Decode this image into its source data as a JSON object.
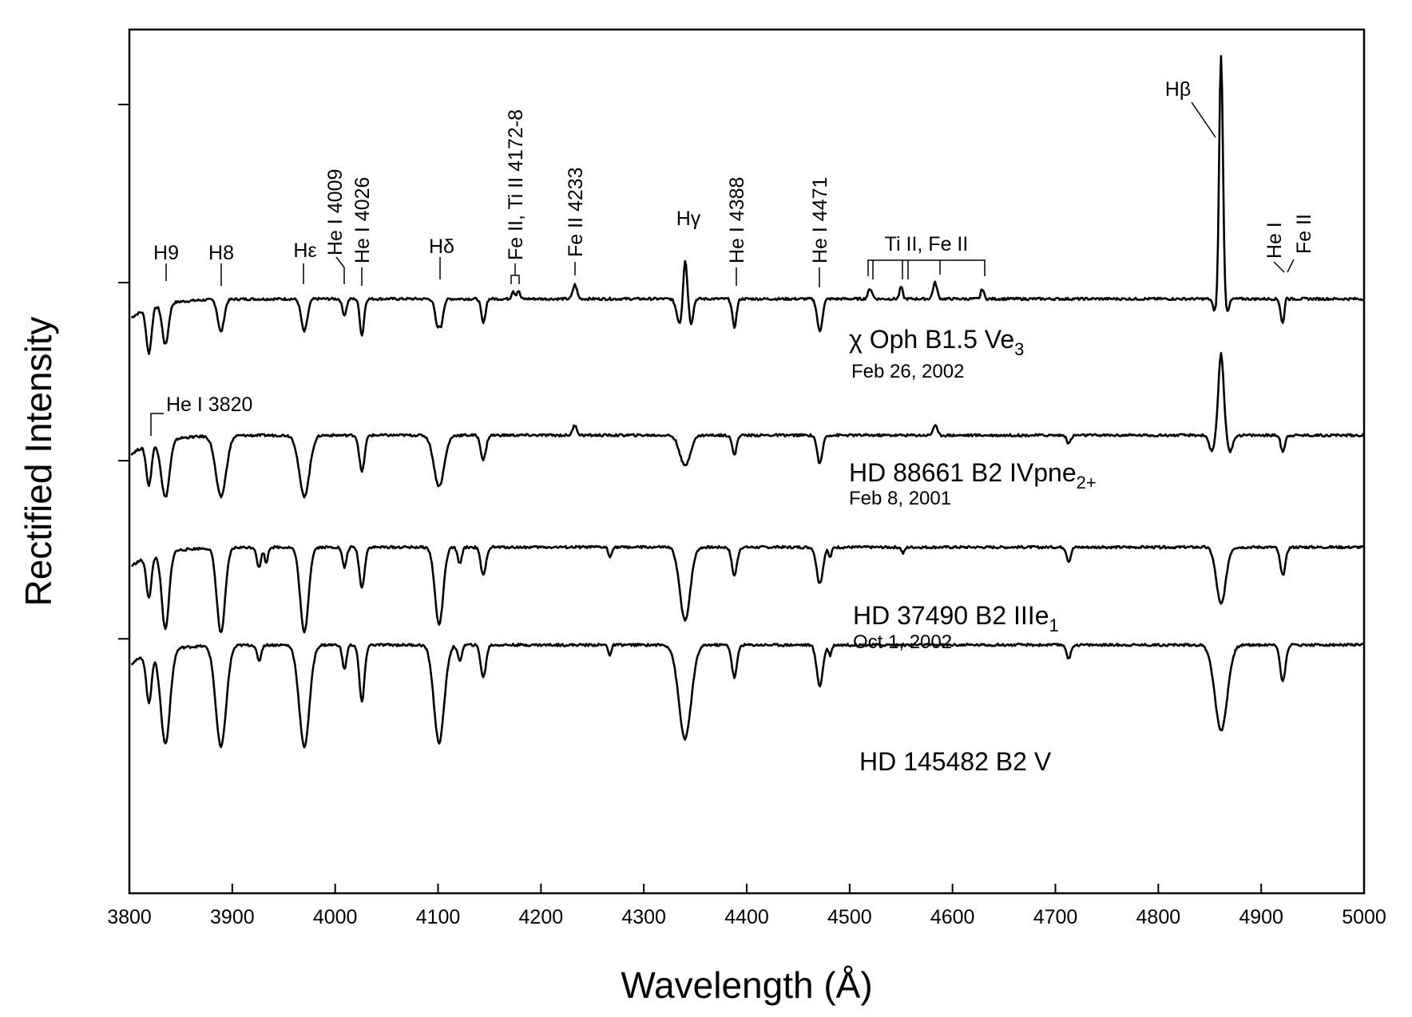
{
  "chart_data": {
    "type": "line",
    "xlabel": "Wavelength (Å)",
    "ylabel": "Rectified Intensity",
    "xlim": [
      3800,
      5000
    ],
    "x_ticks": [
      "3800",
      "3900",
      "4000",
      "4100",
      "4200",
      "4300",
      "4400",
      "4500",
      "4600",
      "4700",
      "4800",
      "4900",
      "5000"
    ],
    "y_ticks_count": 4,
    "grid": false,
    "legend": "none",
    "series": [
      {
        "name": "χ Oph  B1.5 Ve",
        "name_sub": "3",
        "date": "Feb 26, 2002",
        "offset": 3.0,
        "features": [
          {
            "x": 3819,
            "depth": -0.22,
            "width": 2.5
          },
          {
            "x": 3835,
            "depth": -0.2,
            "width": 3
          },
          {
            "x": 3889,
            "depth": -0.16,
            "width": 3
          },
          {
            "x": 3970,
            "depth": -0.16,
            "width": 3
          },
          {
            "x": 4009,
            "depth": -0.08,
            "width": 2
          },
          {
            "x": 4026,
            "depth": -0.18,
            "width": 2
          },
          {
            "x": 4101,
            "depth": -0.18,
            "width": 3
          },
          {
            "x": 4101,
            "depth": 0.05,
            "width": 1
          },
          {
            "x": 4144,
            "depth": -0.12,
            "width": 2
          },
          {
            "x": 4173,
            "depth": 0.04,
            "width": 1.5
          },
          {
            "x": 4178,
            "depth": 0.04,
            "width": 1.5
          },
          {
            "x": 4233,
            "depth": 0.07,
            "width": 2
          },
          {
            "x": 4335,
            "depth": -0.12,
            "width": 3
          },
          {
            "x": 4340,
            "depth": 0.22,
            "width": 1.8
          },
          {
            "x": 4346,
            "depth": -0.12,
            "width": 2
          },
          {
            "x": 4388,
            "depth": -0.14,
            "width": 2
          },
          {
            "x": 4471,
            "depth": -0.16,
            "width": 2.5
          },
          {
            "x": 4520,
            "depth": 0.05,
            "width": 2
          },
          {
            "x": 4550,
            "depth": 0.06,
            "width": 1.5
          },
          {
            "x": 4583,
            "depth": 0.08,
            "width": 2
          },
          {
            "x": 4629,
            "depth": 0.05,
            "width": 1.5
          },
          {
            "x": 4861,
            "depth": 1.2,
            "width": 1.8
          },
          {
            "x": 4855,
            "depth": -0.06,
            "width": 2
          },
          {
            "x": 4867,
            "depth": -0.06,
            "width": 2
          },
          {
            "x": 4921,
            "depth": -0.12,
            "width": 2
          },
          {
            "x": 4924,
            "depth": 0.04,
            "width": 1
          }
        ]
      },
      {
        "name": "HD 88661  B2 IVpne",
        "name_sub": "2+",
        "date": "Feb 8, 2001",
        "offset": 2.0,
        "features": [
          {
            "x": 3819,
            "depth": -0.2,
            "width": 2.5
          },
          {
            "x": 3835,
            "depth": -0.28,
            "width": 4
          },
          {
            "x": 3889,
            "depth": -0.3,
            "width": 5
          },
          {
            "x": 3970,
            "depth": -0.3,
            "width": 5
          },
          {
            "x": 4026,
            "depth": -0.18,
            "width": 2.5
          },
          {
            "x": 4101,
            "depth": -0.25,
            "width": 5
          },
          {
            "x": 4144,
            "depth": -0.12,
            "width": 2.5
          },
          {
            "x": 4233,
            "depth": 0.05,
            "width": 2
          },
          {
            "x": 4340,
            "depth": -0.15,
            "width": 5
          },
          {
            "x": 4388,
            "depth": -0.1,
            "width": 2
          },
          {
            "x": 4471,
            "depth": -0.14,
            "width": 2.5
          },
          {
            "x": 4583,
            "depth": 0.05,
            "width": 2
          },
          {
            "x": 4713,
            "depth": -0.04,
            "width": 2
          },
          {
            "x": 4861,
            "depth": 0.4,
            "width": 2.5
          },
          {
            "x": 4852,
            "depth": -0.08,
            "width": 2.5
          },
          {
            "x": 4870,
            "depth": -0.08,
            "width": 2.5
          },
          {
            "x": 4921,
            "depth": -0.08,
            "width": 2
          }
        ]
      },
      {
        "name": "HD 37490  B2 IIIe",
        "name_sub": "1",
        "date": "Oct 1, 2002",
        "offset": 1.3,
        "features": [
          {
            "x": 3819,
            "depth": -0.2,
            "width": 2.5
          },
          {
            "x": 3835,
            "depth": -0.38,
            "width": 3.5
          },
          {
            "x": 3889,
            "depth": -0.42,
            "width": 4
          },
          {
            "x": 3926,
            "depth": -0.1,
            "width": 2
          },
          {
            "x": 3933,
            "depth": -0.08,
            "width": 1.5
          },
          {
            "x": 3970,
            "depth": -0.42,
            "width": 4
          },
          {
            "x": 4009,
            "depth": -0.1,
            "width": 2
          },
          {
            "x": 4026,
            "depth": -0.2,
            "width": 2.5
          },
          {
            "x": 4101,
            "depth": -0.38,
            "width": 4
          },
          {
            "x": 4121,
            "depth": -0.08,
            "width": 2
          },
          {
            "x": 4144,
            "depth": -0.14,
            "width": 2.5
          },
          {
            "x": 4267,
            "depth": -0.05,
            "width": 1.5
          },
          {
            "x": 4340,
            "depth": -0.36,
            "width": 5
          },
          {
            "x": 4388,
            "depth": -0.14,
            "width": 2.5
          },
          {
            "x": 4471,
            "depth": -0.18,
            "width": 3
          },
          {
            "x": 4481,
            "depth": -0.05,
            "width": 1.5
          },
          {
            "x": 4552,
            "depth": -0.03,
            "width": 1.5
          },
          {
            "x": 4713,
            "depth": -0.07,
            "width": 2
          },
          {
            "x": 4861,
            "depth": -0.28,
            "width": 4.5
          },
          {
            "x": 4921,
            "depth": -0.14,
            "width": 2.5
          }
        ]
      },
      {
        "name": "HD 145482  B2 V",
        "name_sub": "",
        "date": "",
        "offset": 0.6,
        "features": [
          {
            "x": 3819,
            "depth": -0.24,
            "width": 2.5
          },
          {
            "x": 3835,
            "depth": -0.46,
            "width": 4.5
          },
          {
            "x": 3889,
            "depth": -0.5,
            "width": 5
          },
          {
            "x": 3926,
            "depth": -0.08,
            "width": 2
          },
          {
            "x": 3970,
            "depth": -0.5,
            "width": 5
          },
          {
            "x": 4009,
            "depth": -0.12,
            "width": 2
          },
          {
            "x": 4026,
            "depth": -0.28,
            "width": 2.5
          },
          {
            "x": 4101,
            "depth": -0.48,
            "width": 5
          },
          {
            "x": 4121,
            "depth": -0.08,
            "width": 2
          },
          {
            "x": 4144,
            "depth": -0.16,
            "width": 2.5
          },
          {
            "x": 4267,
            "depth": -0.05,
            "width": 1.5
          },
          {
            "x": 4340,
            "depth": -0.46,
            "width": 6
          },
          {
            "x": 4388,
            "depth": -0.16,
            "width": 2.5
          },
          {
            "x": 4471,
            "depth": -0.2,
            "width": 3
          },
          {
            "x": 4481,
            "depth": -0.05,
            "width": 1.5
          },
          {
            "x": 4713,
            "depth": -0.07,
            "width": 2
          },
          {
            "x": 4861,
            "depth": -0.42,
            "width": 6
          },
          {
            "x": 4921,
            "depth": -0.18,
            "width": 2.5
          }
        ]
      }
    ],
    "annotations": [
      {
        "text": "H9",
        "x": 3835,
        "rotate": false
      },
      {
        "text": "H8",
        "x": 3889,
        "rotate": false
      },
      {
        "text": "Hε",
        "x": 3970,
        "rotate": false
      },
      {
        "text": "He I 4009",
        "x": 4009,
        "rotate": true
      },
      {
        "text": "He I 4026",
        "x": 4026,
        "rotate": true
      },
      {
        "text": "Hδ",
        "x": 4101,
        "rotate": false
      },
      {
        "text": "Fe II, Ti II 4172-8",
        "x": 4175,
        "rotate": true
      },
      {
        "text": "Fe II 4233",
        "x": 4233,
        "rotate": true
      },
      {
        "text": "Hγ",
        "x": 4340,
        "rotate": false
      },
      {
        "text": "He I 4388",
        "x": 4388,
        "rotate": true
      },
      {
        "text": "He I 4471",
        "x": 4471,
        "rotate": true
      },
      {
        "text": "Ti II, Fe II",
        "x": 4575,
        "rotate": false
      },
      {
        "text": "Hβ",
        "x": 4861,
        "rotate": false
      },
      {
        "text": "He I",
        "x": 4921,
        "rotate": true
      },
      {
        "text": "Fe II",
        "x": 4924,
        "rotate": true
      },
      {
        "text": "He I 3820",
        "x": 3820,
        "rotate": false
      }
    ]
  }
}
